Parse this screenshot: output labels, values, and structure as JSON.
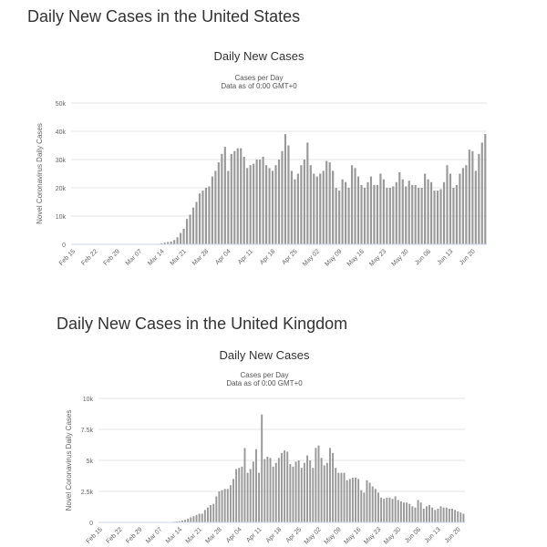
{
  "page": {
    "us_heading": "Daily New Cases in the United States",
    "uk_heading": "Daily New Cases in the United Kingdom"
  },
  "colors": {
    "bar": "#999999",
    "grid": "#e6e6e6"
  },
  "chart_data": [
    {
      "type": "bar",
      "title": "Daily New Cases",
      "subtitle": [
        "Cases per Day",
        "Data as of 0:00 GMT+0"
      ],
      "ylabel": "Novel Coronavirus Daily Cases",
      "xlabel": "",
      "ylim": [
        0,
        50000
      ],
      "yticks": [
        0,
        10000,
        20000,
        30000,
        40000,
        50000
      ],
      "ytick_labels": [
        "0",
        "10k",
        "20k",
        "30k",
        "40k",
        "50k"
      ],
      "xtick_labels": [
        "Feb 15",
        "Feb 22",
        "Feb 29",
        "Mar 07",
        "Mar 14",
        "Mar 21",
        "Mar 28",
        "Apr 04",
        "Apr 11",
        "Apr 18",
        "Apr 25",
        "May 02",
        "May 09",
        "May 16",
        "May 23",
        "May 30",
        "Jun 06",
        "Jun 13",
        "Jun 20"
      ],
      "grid": true,
      "legend": false,
      "x_start": "Feb 15",
      "values": [
        0,
        0,
        0,
        0,
        0,
        0,
        0,
        0,
        0,
        0,
        0,
        0,
        0,
        0,
        0,
        0,
        0,
        0,
        0,
        0,
        0,
        0,
        0,
        0,
        50,
        100,
        150,
        200,
        400,
        600,
        800,
        1000,
        1500,
        2500,
        4000,
        5500,
        9000,
        10500,
        13000,
        15000,
        18000,
        19000,
        20000,
        20500,
        24000,
        26000,
        29000,
        32000,
        34500,
        26000,
        32000,
        33000,
        34000,
        34000,
        31000,
        27000,
        28000,
        28500,
        30000,
        30000,
        31000,
        28000,
        27000,
        26000,
        28000,
        30000,
        33000,
        39000,
        35000,
        26000,
        23000,
        25000,
        28000,
        30000,
        36000,
        28000,
        25000,
        24000,
        25000,
        26000,
        29500,
        29000,
        26000,
        20000,
        19000,
        23000,
        22000,
        20000,
        28000,
        27000,
        24000,
        21000,
        20000,
        22000,
        24000,
        21000,
        21000,
        25000,
        23000,
        20000,
        20000,
        20500,
        22000,
        25500,
        23000,
        20500,
        22500,
        21000,
        21000,
        20000,
        20000,
        25000,
        23000,
        22000,
        19000,
        19000,
        19500,
        22000,
        28000,
        25000,
        20000,
        21000,
        25000,
        27000,
        28000,
        33500,
        33000,
        26000,
        32000,
        36000,
        39000
      ]
    },
    {
      "type": "bar",
      "title": "Daily New Cases",
      "subtitle": [
        "Cases per Day",
        "Data as of 0:00 GMT+0"
      ],
      "ylabel": "Novel Coronavirus Daily Cases",
      "xlabel": "",
      "ylim": [
        0,
        10000
      ],
      "yticks": [
        0,
        2500,
        5000,
        7500,
        10000
      ],
      "ytick_labels": [
        "0",
        "2.5k",
        "5k",
        "7.5k",
        "10k"
      ],
      "xtick_labels": [
        "Feb 15",
        "Feb 22",
        "Feb 29",
        "Mar 07",
        "Mar 14",
        "Mar 21",
        "Mar 28",
        "Apr 04",
        "Apr 11",
        "Apr 18",
        "Apr 25",
        "May 02",
        "May 09",
        "May 16",
        "May 23",
        "May 30",
        "Jun 06",
        "Jun 13",
        "Jun 20"
      ],
      "grid": true,
      "legend": false,
      "x_start": "Feb 15",
      "values": [
        0,
        0,
        0,
        0,
        0,
        0,
        0,
        0,
        0,
        0,
        0,
        0,
        0,
        0,
        0,
        0,
        0,
        0,
        0,
        0,
        0,
        0,
        0,
        0,
        0,
        0,
        50,
        80,
        100,
        150,
        200,
        300,
        400,
        500,
        600,
        700,
        700,
        1000,
        1200,
        1400,
        1500,
        2100,
        2500,
        2600,
        2700,
        2700,
        3000,
        3500,
        4300,
        4400,
        4500,
        6000,
        4000,
        4300,
        4900,
        5900,
        4000,
        8700,
        5100,
        5300,
        5200,
        4500,
        4800,
        5200,
        5600,
        5800,
        5700,
        4700,
        4500,
        4900,
        5000,
        4400,
        4800,
        5400,
        5000,
        4400,
        6000,
        6200,
        5200,
        4600,
        4800,
        6000,
        5600,
        4400,
        4000,
        4000,
        4000,
        3400,
        3500,
        3600,
        3600,
        3500,
        2600,
        2400,
        3400,
        3200,
        2900,
        2700,
        2400,
        2000,
        1900,
        2000,
        2000,
        1900,
        2100,
        1800,
        1700,
        1600,
        1600,
        1500,
        1300,
        1200,
        1800,
        1600,
        1100,
        1300,
        1400,
        1200,
        1000,
        1100,
        1300,
        1200,
        1200,
        1100,
        1100,
        1000,
        900,
        800,
        700
      ]
    }
  ]
}
